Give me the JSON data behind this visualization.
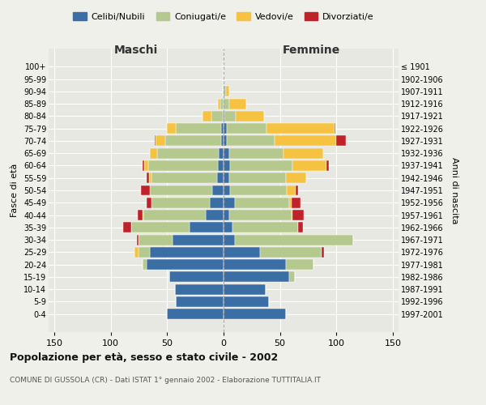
{
  "age_groups": [
    "0-4",
    "5-9",
    "10-14",
    "15-19",
    "20-24",
    "25-29",
    "30-34",
    "35-39",
    "40-44",
    "45-49",
    "50-54",
    "55-59",
    "60-64",
    "65-69",
    "70-74",
    "75-79",
    "80-84",
    "85-89",
    "90-94",
    "95-99",
    "100+"
  ],
  "birth_years": [
    "1997-2001",
    "1992-1996",
    "1987-1991",
    "1982-1986",
    "1977-1981",
    "1972-1976",
    "1967-1971",
    "1962-1966",
    "1957-1961",
    "1952-1956",
    "1947-1951",
    "1942-1946",
    "1937-1941",
    "1932-1936",
    "1927-1931",
    "1922-1926",
    "1917-1921",
    "1912-1916",
    "1907-1911",
    "1902-1906",
    "≤ 1901"
  ],
  "male": {
    "celibi": [
      50,
      42,
      43,
      48,
      68,
      65,
      45,
      30,
      16,
      12,
      10,
      6,
      5,
      4,
      2,
      2,
      1,
      0,
      0,
      0,
      0
    ],
    "coniugati": [
      0,
      0,
      0,
      0,
      4,
      10,
      30,
      52,
      55,
      52,
      55,
      58,
      62,
      55,
      50,
      40,
      10,
      3,
      1,
      0,
      0
    ],
    "vedovi": [
      0,
      0,
      0,
      0,
      0,
      4,
      0,
      0,
      1,
      0,
      0,
      2,
      3,
      6,
      8,
      8,
      8,
      2,
      0,
      0,
      0
    ],
    "divorziati": [
      0,
      0,
      0,
      0,
      0,
      0,
      2,
      7,
      4,
      4,
      8,
      2,
      2,
      0,
      1,
      0,
      0,
      0,
      0,
      0,
      0
    ]
  },
  "female": {
    "nubili": [
      55,
      40,
      37,
      58,
      55,
      32,
      10,
      8,
      5,
      10,
      6,
      5,
      6,
      5,
      3,
      3,
      1,
      0,
      0,
      0,
      0
    ],
    "coniugate": [
      0,
      0,
      0,
      5,
      25,
      55,
      105,
      58,
      55,
      48,
      50,
      50,
      55,
      48,
      42,
      35,
      10,
      5,
      2,
      0,
      0
    ],
    "vedove": [
      0,
      0,
      0,
      0,
      0,
      0,
      0,
      0,
      1,
      2,
      8,
      18,
      30,
      35,
      55,
      60,
      25,
      15,
      3,
      0,
      0
    ],
    "divorziate": [
      0,
      0,
      0,
      0,
      0,
      2,
      0,
      4,
      10,
      8,
      2,
      0,
      2,
      0,
      8,
      1,
      0,
      0,
      0,
      0,
      0
    ]
  },
  "color_celibi": "#3a6ea5",
  "color_coniugati": "#b5c98e",
  "color_vedovi": "#f5c242",
  "color_divorziati": "#c0222a",
  "xlim": 155,
  "title_main": "Popolazione per età, sesso e stato civile - 2002",
  "title_sub": "COMUNE DI GUSSOLA (CR) - Dati ISTAT 1° gennaio 2002 - Elaborazione TUTTITALIA.IT",
  "label_maschi": "Maschi",
  "label_femmine": "Femmine",
  "label_fasce": "Fasce di età",
  "label_anni": "Anni di nascita",
  "legend_labels": [
    "Celibi/Nubili",
    "Coniugati/e",
    "Vedovi/e",
    "Divorziati/e"
  ],
  "bg_color": "#f0f0eb",
  "plot_bg": "#e8e8e2"
}
